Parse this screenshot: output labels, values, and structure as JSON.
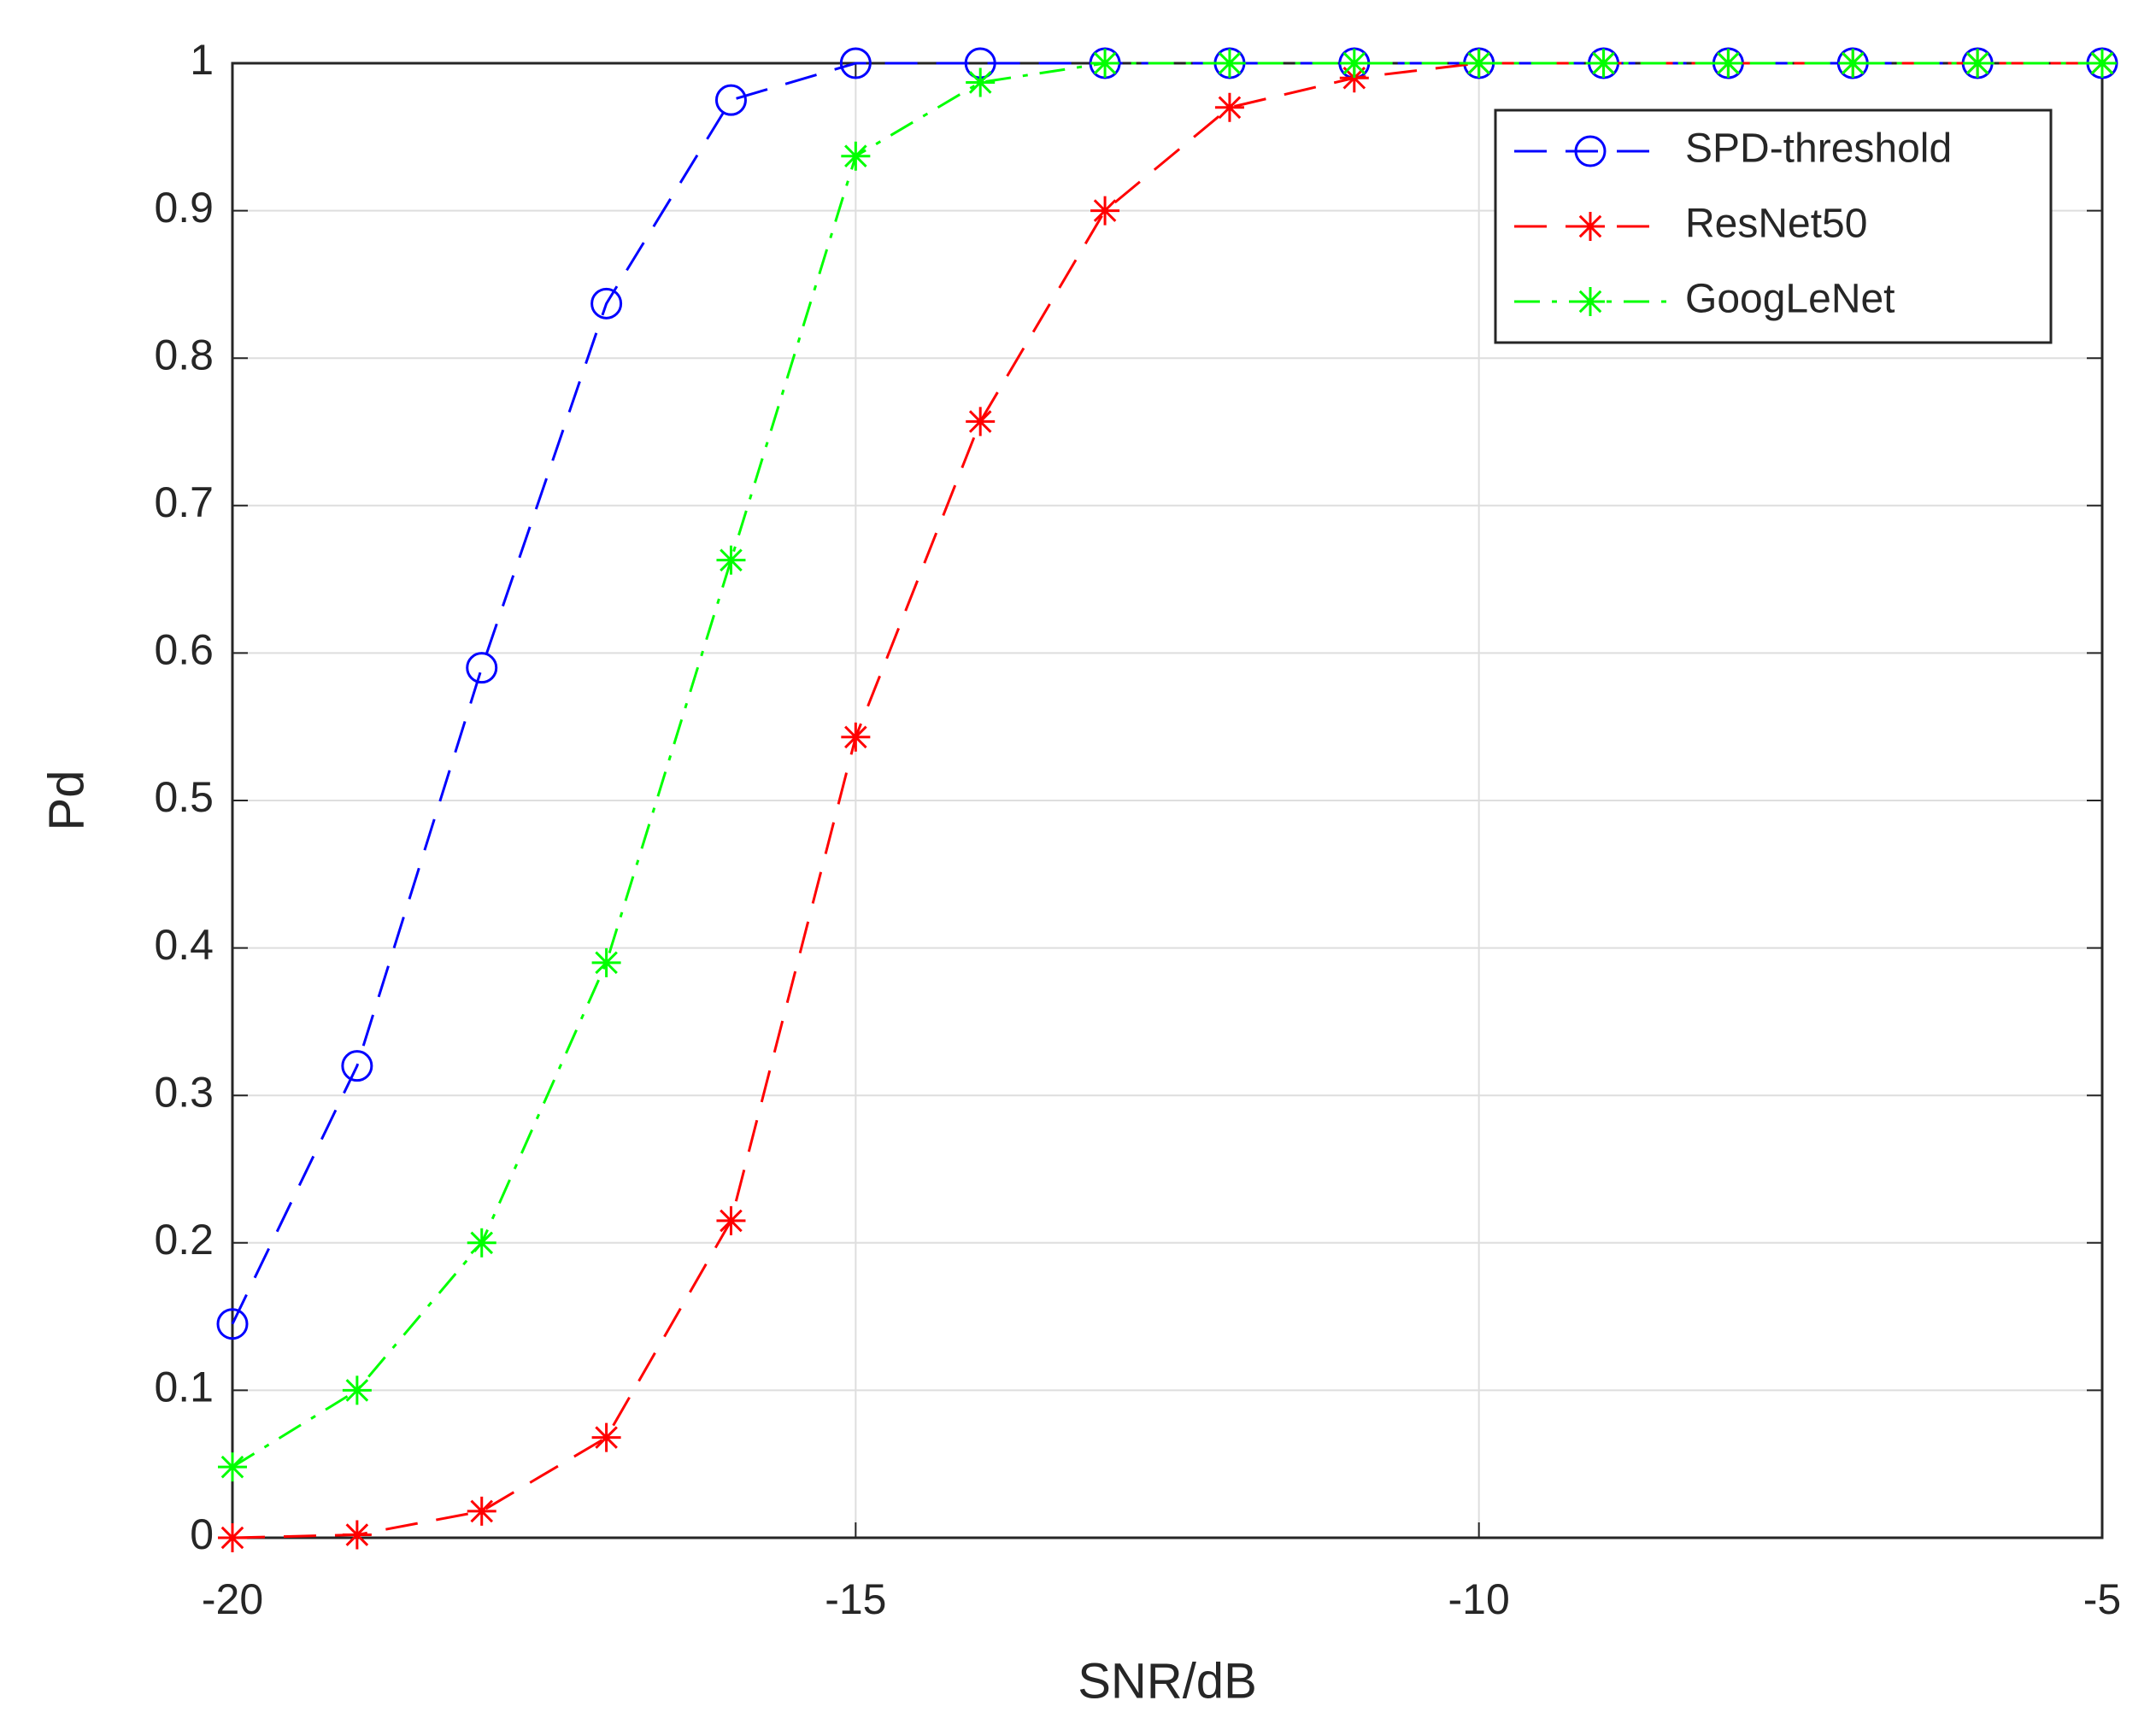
{
  "chart_data": {
    "type": "line",
    "x_label": "SNR/dB",
    "y_label": "Pd",
    "x": [
      -20,
      -19,
      -18,
      -17,
      -16,
      -15,
      -14,
      -13,
      -12,
      -11,
      -10,
      -9,
      -8,
      -7,
      -6,
      -5
    ],
    "series": [
      {
        "name": "SPD-threshold",
        "color": "#0000ff",
        "marker": "circle",
        "dash": "dashed",
        "values": [
          0.145,
          0.32,
          0.59,
          0.837,
          0.975,
          1,
          1,
          1,
          1,
          1,
          1,
          1,
          1,
          1,
          1,
          1
        ]
      },
      {
        "name": "ResNet50",
        "color": "#ff0000",
        "marker": "star",
        "dash": "dashed",
        "values": [
          0,
          0.002,
          0.018,
          0.068,
          0.215,
          0.543,
          0.757,
          0.9,
          0.97,
          0.99,
          1,
          1,
          1,
          1,
          1,
          1
        ]
      },
      {
        "name": "GoogLeNet",
        "color": "#00ff00",
        "marker": "star",
        "dash": "dashdot",
        "values": [
          0.048,
          0.1,
          0.2,
          0.39,
          0.663,
          0.937,
          0.987,
          1,
          1,
          1,
          1,
          1,
          1,
          1,
          1,
          1
        ]
      }
    ],
    "xlim": [
      -20,
      -5
    ],
    "xticks": [
      -20,
      -15,
      -10,
      -5
    ],
    "ylim": [
      0,
      1
    ],
    "yticks": [
      0,
      0.1,
      0.2,
      0.3,
      0.4,
      0.5,
      0.6,
      0.7,
      0.8,
      0.9,
      1
    ],
    "grid": true,
    "legend_position": "upper-right"
  }
}
